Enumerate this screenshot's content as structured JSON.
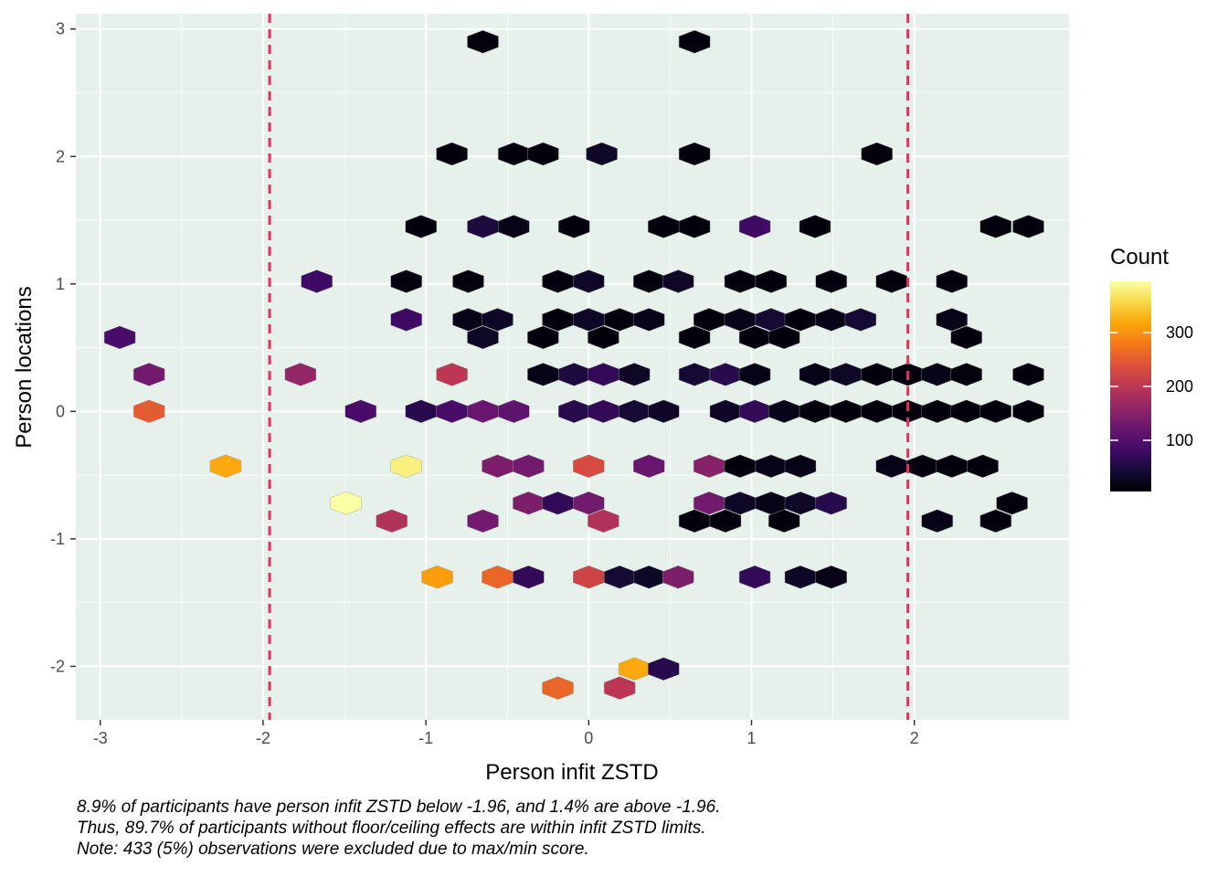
{
  "chart_data": {
    "type": "hexbin",
    "title": "",
    "xlabel": "Person infit ZSTD",
    "ylabel": "Person locations",
    "xlim": [
      -3.15,
      2.95
    ],
    "ylim": [
      -2.42,
      3.12
    ],
    "x_ticks": [
      -3,
      -2,
      -1,
      0,
      1,
      2
    ],
    "x_tick_labels": [
      "-3",
      "-2",
      "-1",
      "0",
      "1",
      "2"
    ],
    "y_ticks": [
      -2,
      -1,
      0,
      1,
      2,
      3
    ],
    "y_tick_labels": [
      "-2",
      "-1",
      "0",
      "1",
      "2",
      "3"
    ],
    "grid": true,
    "reference_lines": [
      {
        "axis": "x",
        "value": -1.96,
        "color": "#e8305e",
        "style": "dashed"
      },
      {
        "axis": "x",
        "value": 1.96,
        "color": "#e8305e",
        "style": "dashed"
      }
    ],
    "legend": {
      "title": "Count",
      "placement": "right",
      "min": 5,
      "max": 395,
      "ticks": [
        100,
        200,
        300
      ],
      "tick_labels": [
        "100",
        "200",
        "300"
      ],
      "colormap": "inferno"
    },
    "hexbins": [
      {
        "x": -0.65,
        "y": 2.9,
        "count": 10
      },
      {
        "x": 0.65,
        "y": 2.9,
        "count": 10
      },
      {
        "x": -0.84,
        "y": 2.02,
        "count": 10
      },
      {
        "x": -0.46,
        "y": 2.02,
        "count": 10
      },
      {
        "x": -0.28,
        "y": 2.02,
        "count": 10
      },
      {
        "x": 0.08,
        "y": 2.02,
        "count": 30
      },
      {
        "x": 0.65,
        "y": 2.02,
        "count": 10
      },
      {
        "x": 1.77,
        "y": 2.02,
        "count": 10
      },
      {
        "x": -1.03,
        "y": 1.45,
        "count": 10
      },
      {
        "x": -0.65,
        "y": 1.45,
        "count": 50
      },
      {
        "x": -0.46,
        "y": 1.45,
        "count": 20
      },
      {
        "x": -0.09,
        "y": 1.45,
        "count": 10
      },
      {
        "x": 0.46,
        "y": 1.45,
        "count": 10
      },
      {
        "x": 0.65,
        "y": 1.45,
        "count": 10
      },
      {
        "x": 1.02,
        "y": 1.45,
        "count": 80
      },
      {
        "x": 1.39,
        "y": 1.45,
        "count": 10
      },
      {
        "x": 2.5,
        "y": 1.45,
        "count": 10
      },
      {
        "x": 2.7,
        "y": 1.45,
        "count": 10
      },
      {
        "x": -1.67,
        "y": 1.02,
        "count": 80
      },
      {
        "x": -1.12,
        "y": 1.02,
        "count": 10
      },
      {
        "x": -0.74,
        "y": 1.02,
        "count": 10
      },
      {
        "x": -0.19,
        "y": 1.02,
        "count": 10
      },
      {
        "x": 0.0,
        "y": 1.02,
        "count": 30
      },
      {
        "x": 0.37,
        "y": 1.02,
        "count": 10
      },
      {
        "x": 0.55,
        "y": 1.02,
        "count": 30
      },
      {
        "x": 0.93,
        "y": 1.02,
        "count": 10
      },
      {
        "x": 1.12,
        "y": 1.02,
        "count": 10
      },
      {
        "x": 1.49,
        "y": 1.02,
        "count": 10
      },
      {
        "x": 1.86,
        "y": 1.02,
        "count": 10
      },
      {
        "x": 2.23,
        "y": 1.02,
        "count": 10
      },
      {
        "x": -1.12,
        "y": 0.72,
        "count": 80
      },
      {
        "x": -0.74,
        "y": 0.72,
        "count": 20
      },
      {
        "x": -0.56,
        "y": 0.72,
        "count": 30
      },
      {
        "x": -0.19,
        "y": 0.72,
        "count": 10
      },
      {
        "x": 0.0,
        "y": 0.72,
        "count": 30
      },
      {
        "x": 0.19,
        "y": 0.72,
        "count": 10
      },
      {
        "x": 0.37,
        "y": 0.72,
        "count": 20
      },
      {
        "x": 0.74,
        "y": 0.72,
        "count": 10
      },
      {
        "x": 0.93,
        "y": 0.72,
        "count": 20
      },
      {
        "x": 1.12,
        "y": 0.72,
        "count": 40
      },
      {
        "x": 1.3,
        "y": 0.72,
        "count": 10
      },
      {
        "x": 1.49,
        "y": 0.72,
        "count": 20
      },
      {
        "x": 1.67,
        "y": 0.72,
        "count": 40
      },
      {
        "x": 2.23,
        "y": 0.72,
        "count": 20
      },
      {
        "x": -2.88,
        "y": 0.58,
        "count": 90
      },
      {
        "x": -0.65,
        "y": 0.58,
        "count": 30
      },
      {
        "x": -0.28,
        "y": 0.58,
        "count": 10
      },
      {
        "x": 0.09,
        "y": 0.58,
        "count": 10
      },
      {
        "x": 0.65,
        "y": 0.58,
        "count": 10
      },
      {
        "x": 1.02,
        "y": 0.58,
        "count": 10
      },
      {
        "x": 1.2,
        "y": 0.58,
        "count": 10
      },
      {
        "x": 2.32,
        "y": 0.58,
        "count": 10
      },
      {
        "x": -2.7,
        "y": 0.29,
        "count": 130
      },
      {
        "x": -1.77,
        "y": 0.29,
        "count": 160
      },
      {
        "x": -0.84,
        "y": 0.29,
        "count": 200
      },
      {
        "x": -0.28,
        "y": 0.29,
        "count": 20
      },
      {
        "x": -0.09,
        "y": 0.29,
        "count": 50
      },
      {
        "x": 0.09,
        "y": 0.29,
        "count": 70
      },
      {
        "x": 0.28,
        "y": 0.29,
        "count": 30
      },
      {
        "x": 0.65,
        "y": 0.29,
        "count": 40
      },
      {
        "x": 0.84,
        "y": 0.29,
        "count": 60
      },
      {
        "x": 1.02,
        "y": 0.29,
        "count": 20
      },
      {
        "x": 1.39,
        "y": 0.29,
        "count": 20
      },
      {
        "x": 1.58,
        "y": 0.29,
        "count": 30
      },
      {
        "x": 1.77,
        "y": 0.29,
        "count": 10
      },
      {
        "x": 1.96,
        "y": 0.29,
        "count": 10
      },
      {
        "x": 2.14,
        "y": 0.29,
        "count": 20
      },
      {
        "x": 2.32,
        "y": 0.29,
        "count": 10
      },
      {
        "x": 2.7,
        "y": 0.29,
        "count": 10
      },
      {
        "x": -2.7,
        "y": 0.0,
        "count": 250
      },
      {
        "x": -1.4,
        "y": 0.0,
        "count": 90
      },
      {
        "x": -1.03,
        "y": 0.0,
        "count": 60
      },
      {
        "x": -0.84,
        "y": 0.0,
        "count": 90
      },
      {
        "x": -0.65,
        "y": 0.0,
        "count": 120
      },
      {
        "x": -0.46,
        "y": 0.0,
        "count": 110
      },
      {
        "x": -0.09,
        "y": 0.0,
        "count": 60
      },
      {
        "x": 0.09,
        "y": 0.0,
        "count": 70
      },
      {
        "x": 0.28,
        "y": 0.0,
        "count": 40
      },
      {
        "x": 0.46,
        "y": 0.0,
        "count": 30
      },
      {
        "x": 0.84,
        "y": 0.0,
        "count": 30
      },
      {
        "x": 1.02,
        "y": 0.0,
        "count": 70
      },
      {
        "x": 1.2,
        "y": 0.0,
        "count": 20
      },
      {
        "x": 1.39,
        "y": 0.0,
        "count": 10
      },
      {
        "x": 1.58,
        "y": 0.0,
        "count": 10
      },
      {
        "x": 1.77,
        "y": 0.0,
        "count": 10
      },
      {
        "x": 1.96,
        "y": 0.0,
        "count": 10
      },
      {
        "x": 2.14,
        "y": 0.0,
        "count": 10
      },
      {
        "x": 2.32,
        "y": 0.0,
        "count": 10
      },
      {
        "x": 2.5,
        "y": 0.0,
        "count": 10
      },
      {
        "x": 2.7,
        "y": 0.0,
        "count": 10
      },
      {
        "x": -2.23,
        "y": -0.43,
        "count": 320
      },
      {
        "x": -1.12,
        "y": -0.43,
        "count": 380
      },
      {
        "x": -0.56,
        "y": -0.43,
        "count": 140
      },
      {
        "x": -0.37,
        "y": -0.43,
        "count": 130
      },
      {
        "x": 0.0,
        "y": -0.43,
        "count": 230
      },
      {
        "x": 0.37,
        "y": -0.43,
        "count": 120
      },
      {
        "x": 0.74,
        "y": -0.43,
        "count": 150
      },
      {
        "x": 0.93,
        "y": -0.43,
        "count": 10
      },
      {
        "x": 1.12,
        "y": -0.43,
        "count": 20
      },
      {
        "x": 1.3,
        "y": -0.43,
        "count": 20
      },
      {
        "x": 1.86,
        "y": -0.43,
        "count": 20
      },
      {
        "x": 2.05,
        "y": -0.43,
        "count": 10
      },
      {
        "x": 2.23,
        "y": -0.43,
        "count": 10
      },
      {
        "x": 2.42,
        "y": -0.43,
        "count": 10
      },
      {
        "x": -1.49,
        "y": -0.72,
        "count": 395
      },
      {
        "x": -0.37,
        "y": -0.72,
        "count": 140
      },
      {
        "x": -0.19,
        "y": -0.72,
        "count": 70
      },
      {
        "x": 0.0,
        "y": -0.72,
        "count": 130
      },
      {
        "x": 0.74,
        "y": -0.72,
        "count": 130
      },
      {
        "x": 0.93,
        "y": -0.72,
        "count": 30
      },
      {
        "x": 1.12,
        "y": -0.72,
        "count": 20
      },
      {
        "x": 1.3,
        "y": -0.72,
        "count": 30
      },
      {
        "x": 1.49,
        "y": -0.72,
        "count": 60
      },
      {
        "x": 2.6,
        "y": -0.72,
        "count": 10
      },
      {
        "x": -1.21,
        "y": -0.86,
        "count": 190
      },
      {
        "x": -0.65,
        "y": -0.86,
        "count": 130
      },
      {
        "x": 0.09,
        "y": -0.86,
        "count": 190
      },
      {
        "x": 0.65,
        "y": -0.86,
        "count": 10
      },
      {
        "x": 0.84,
        "y": -0.86,
        "count": 10
      },
      {
        "x": 1.2,
        "y": -0.86,
        "count": 10
      },
      {
        "x": 2.14,
        "y": -0.86,
        "count": 20
      },
      {
        "x": 2.5,
        "y": -0.86,
        "count": 10
      },
      {
        "x": -0.93,
        "y": -1.3,
        "count": 310
      },
      {
        "x": -0.56,
        "y": -1.3,
        "count": 260
      },
      {
        "x": -0.37,
        "y": -1.3,
        "count": 70
      },
      {
        "x": 0.0,
        "y": -1.3,
        "count": 220
      },
      {
        "x": 0.19,
        "y": -1.3,
        "count": 40
      },
      {
        "x": 0.37,
        "y": -1.3,
        "count": 30
      },
      {
        "x": 0.55,
        "y": -1.3,
        "count": 140
      },
      {
        "x": 1.02,
        "y": -1.3,
        "count": 70
      },
      {
        "x": 1.3,
        "y": -1.3,
        "count": 30
      },
      {
        "x": 1.49,
        "y": -1.3,
        "count": 20
      },
      {
        "x": 0.28,
        "y": -2.02,
        "count": 320
      },
      {
        "x": 0.46,
        "y": -2.02,
        "count": 60
      },
      {
        "x": -0.19,
        "y": -2.17,
        "count": 260
      },
      {
        "x": 0.19,
        "y": -2.17,
        "count": 200
      }
    ],
    "caption": [
      "8.9% of participants have person infit ZSTD below -1.96, and 1.4% are above -1.96.",
      "Thus, 89.7% of participants without floor/ceiling effects are within infit ZSTD limits.",
      "Note: 433 (5%) observations were excluded due to max/min score."
    ]
  }
}
